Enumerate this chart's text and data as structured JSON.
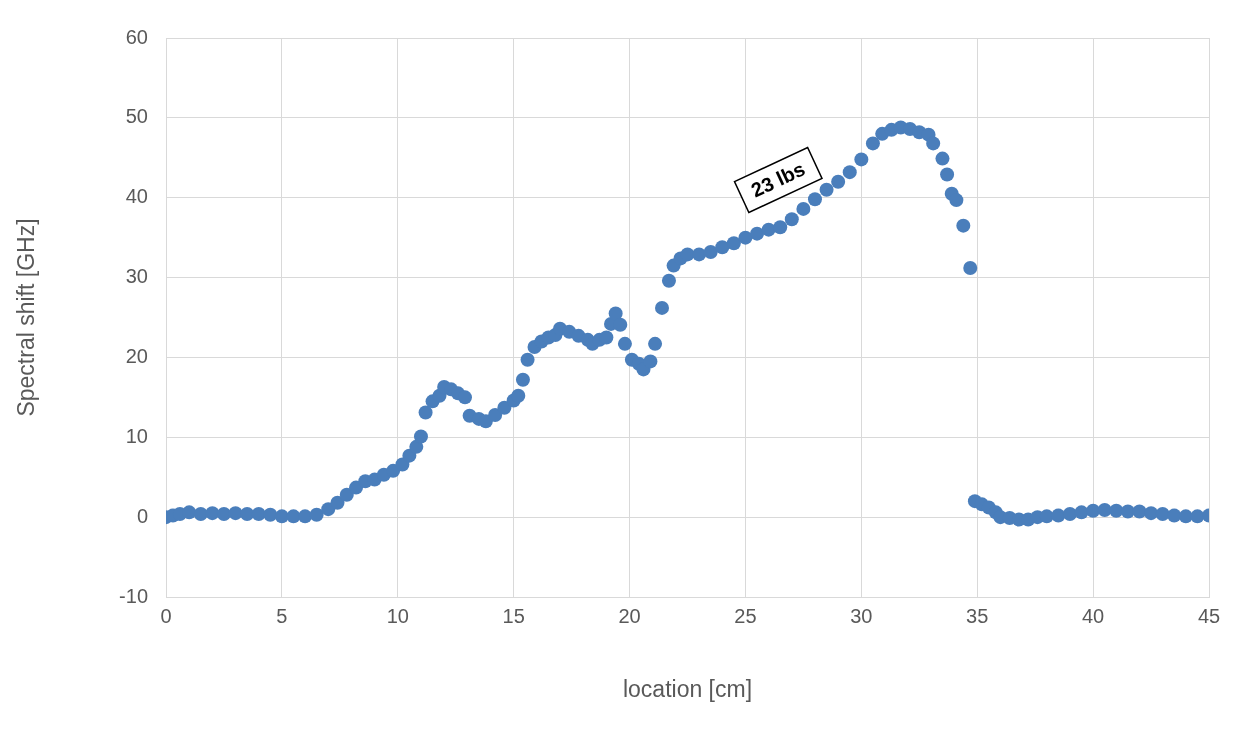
{
  "chart_data": {
    "type": "scatter",
    "xlabel": "location [cm]",
    "ylabel": "Spectral shift [GHz]",
    "xlim": [
      0,
      45
    ],
    "xticks": [
      0,
      5,
      10,
      15,
      20,
      25,
      30,
      35,
      40,
      45
    ],
    "ylim": [
      -10,
      60
    ],
    "yticks": [
      -10,
      0,
      10,
      20,
      30,
      40,
      50,
      60
    ],
    "grid": true,
    "marker": "circle",
    "legend": false,
    "annotations": [
      "23 lbs"
    ],
    "series": [
      {
        "color": "#4a7ebb",
        "x": [
          0,
          0.3,
          0.6,
          1,
          1.5,
          2,
          2.5,
          3,
          3.5,
          4,
          4.5,
          5,
          5.5,
          6,
          6.5,
          7,
          7.4,
          7.8,
          8.2,
          8.6,
          9,
          9.4,
          9.8,
          10.2,
          10.5,
          10.8,
          11,
          11.2,
          11.5,
          11.8,
          12,
          12.3,
          12.6,
          12.9,
          13.1,
          13.5,
          13.8,
          14.2,
          14.6,
          15,
          15.2,
          15.4,
          15.6,
          15.9,
          16.2,
          16.5,
          16.8,
          17,
          17.4,
          17.8,
          18.2,
          18.4,
          18.7,
          19,
          19.2,
          19.4,
          19.6,
          19.8,
          20.1,
          20.4,
          20.6,
          20.9,
          21.1,
          21.4,
          21.7,
          21.9,
          22.2,
          22.5,
          23,
          23.5,
          24,
          24.5,
          25,
          25.5,
          26,
          26.5,
          27,
          27.5,
          28,
          28.5,
          29,
          29.5,
          30,
          30.5,
          30.9,
          31.3,
          31.7,
          32.1,
          32.5,
          32.9,
          33.1,
          33.5,
          33.7,
          33.9,
          34.1,
          34.4,
          34.7,
          34.9,
          35.2,
          35.5,
          35.8,
          36,
          36.4,
          36.8,
          37.2,
          37.6,
          38,
          38.5,
          39,
          39.5,
          40,
          40.5,
          41,
          41.5,
          42,
          42.5,
          43,
          43.5,
          44,
          44.5,
          45
        ],
        "values": [
          0,
          0.2,
          0.4,
          0.6,
          0.4,
          0.5,
          0.4,
          0.5,
          0.4,
          0.4,
          0.3,
          0.1,
          0.1,
          0.1,
          0.3,
          1.0,
          1.8,
          2.8,
          3.7,
          4.5,
          4.7,
          5.3,
          5.8,
          6.6,
          7.7,
          8.8,
          10.1,
          13.1,
          14.5,
          15.2,
          16.3,
          16.0,
          15.5,
          15.0,
          12.7,
          12.3,
          12.0,
          12.8,
          13.7,
          14.6,
          15.2,
          17.2,
          19.7,
          21.3,
          22.0,
          22.5,
          22.8,
          23.6,
          23.2,
          22.7,
          22.2,
          21.7,
          22.2,
          22.5,
          24.2,
          25.5,
          24.1,
          21.7,
          19.7,
          19.2,
          18.5,
          19.5,
          21.7,
          26.2,
          29.6,
          31.5,
          32.4,
          32.9,
          32.9,
          33.2,
          33.8,
          34.3,
          35.0,
          35.5,
          36.0,
          36.3,
          37.3,
          38.6,
          39.8,
          41.0,
          42.0,
          43.2,
          44.8,
          46.8,
          48.0,
          48.5,
          48.8,
          48.6,
          48.2,
          47.9,
          46.8,
          44.9,
          42.9,
          40.5,
          39.7,
          36.5,
          31.2,
          2.0,
          1.6,
          1.2,
          0.6,
          0.0,
          -0.1,
          -0.3,
          -0.3,
          0.0,
          0.1,
          0.2,
          0.4,
          0.6,
          0.8,
          0.9,
          0.8,
          0.7,
          0.7,
          0.5,
          0.4,
          0.2,
          0.1,
          0.1,
          0.2
        ]
      }
    ]
  }
}
